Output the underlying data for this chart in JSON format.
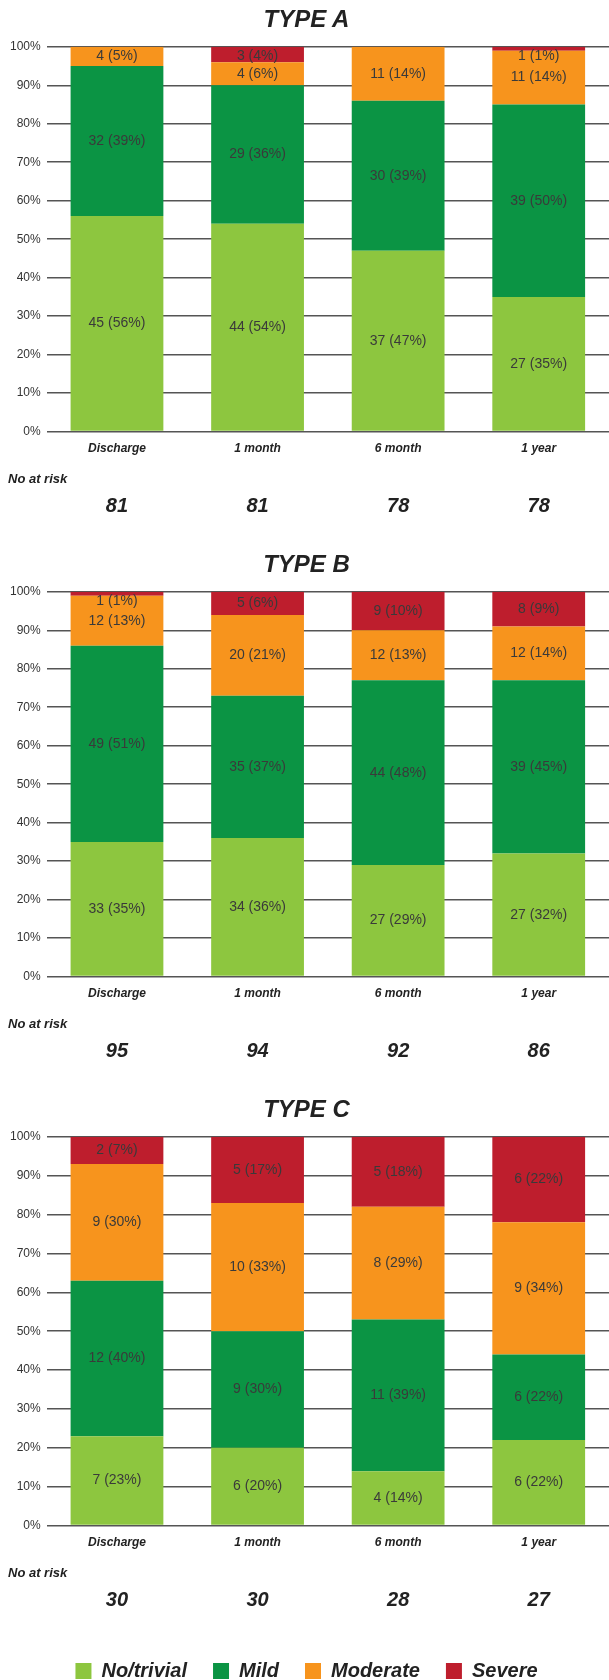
{
  "chart_data": [
    {
      "type": "bar",
      "title": "TYPE A",
      "stacked": true,
      "grid": "y",
      "legend": false,
      "categories": [
        "Discharge",
        "1 month",
        "6 month",
        "1 year"
      ],
      "ylim": [
        0,
        100
      ],
      "yticks": [
        {
          "value": 0,
          "label": "0%"
        },
        {
          "value": 10,
          "label": "10%"
        },
        {
          "value": 20,
          "label": "20%"
        },
        {
          "value": 30,
          "label": "30%"
        },
        {
          "value": 40,
          "label": "40%"
        },
        {
          "value": 50,
          "label": "50%"
        },
        {
          "value": 60,
          "label": "60%"
        },
        {
          "value": 70,
          "label": "70%"
        },
        {
          "value": 80,
          "label": "80%"
        },
        {
          "value": 90,
          "label": "90%"
        },
        {
          "value": 100,
          "label": "100%"
        }
      ],
      "series": [
        {
          "color": "#8dc63f",
          "values": [
            56,
            54,
            47,
            35
          ],
          "value_labels": [
            "45 (56%)",
            "44 (54%)",
            "37 (47%)",
            "27 (35%)"
          ]
        },
        {
          "color": "#0b9444",
          "values": [
            39,
            36,
            39,
            50
          ],
          "value_labels": [
            "32 (39%)",
            "29 (36%)",
            "30 (39%)",
            "39 (50%)"
          ]
        },
        {
          "color": "#f7941d",
          "values": [
            5,
            6,
            14,
            14
          ],
          "value_labels": [
            "4 (5%)",
            "4 (6%)",
            "11 (14%)",
            "11 (14%)"
          ]
        },
        {
          "color": "#be1e2d",
          "values": [
            null,
            4,
            null,
            1
          ],
          "value_labels": [
            null,
            "3 (4%)",
            null,
            "1 (1%)"
          ]
        }
      ],
      "annotations": [
        "No at risk",
        "81",
        "81",
        "78",
        "78"
      ]
    },
    {
      "type": "bar",
      "title": "TYPE B",
      "stacked": true,
      "grid": "y",
      "legend": false,
      "categories": [
        "Discharge",
        "1 month",
        "6 month",
        "1 year"
      ],
      "ylim": [
        0,
        100
      ],
      "yticks": [
        {
          "value": 0,
          "label": "0%"
        },
        {
          "value": 10,
          "label": "10%"
        },
        {
          "value": 20,
          "label": "20%"
        },
        {
          "value": 30,
          "label": "30%"
        },
        {
          "value": 40,
          "label": "40%"
        },
        {
          "value": 50,
          "label": "50%"
        },
        {
          "value": 60,
          "label": "60%"
        },
        {
          "value": 70,
          "label": "70%"
        },
        {
          "value": 80,
          "label": "80%"
        },
        {
          "value": 90,
          "label": "90%"
        },
        {
          "value": 100,
          "label": "100%"
        }
      ],
      "series": [
        {
          "color": "#8dc63f",
          "values": [
            35,
            36,
            29,
            32
          ],
          "value_labels": [
            "33 (35%)",
            "34 (36%)",
            "27 (29%)",
            "27 (32%)"
          ]
        },
        {
          "color": "#0b9444",
          "values": [
            51,
            37,
            48,
            45
          ],
          "value_labels": [
            "49 (51%)",
            "35 (37%)",
            "44 (48%)",
            "39 (45%)"
          ]
        },
        {
          "color": "#f7941d",
          "values": [
            13,
            21,
            13,
            14
          ],
          "value_labels": [
            "12 (13%)",
            "20 (21%)",
            "12 (13%)",
            "12 (14%)"
          ]
        },
        {
          "color": "#be1e2d",
          "values": [
            1,
            6,
            10,
            9
          ],
          "value_labels": [
            "1 (1%)",
            "5 (6%)",
            "9 (10%)",
            "8 (9%)"
          ]
        }
      ],
      "annotations": [
        "No at risk",
        "95",
        "94",
        "92",
        "86"
      ]
    },
    {
      "type": "bar",
      "title": "TYPE C",
      "stacked": true,
      "grid": "y",
      "legend": "bottom",
      "categories": [
        "Discharge",
        "1 month",
        "6 month",
        "1 year"
      ],
      "ylim": [
        0,
        100
      ],
      "yticks": [
        {
          "value": 0,
          "label": "0%"
        },
        {
          "value": 10,
          "label": "10%"
        },
        {
          "value": 20,
          "label": "20%"
        },
        {
          "value": 30,
          "label": "30%"
        },
        {
          "value": 40,
          "label": "40%"
        },
        {
          "value": 50,
          "label": "50%"
        },
        {
          "value": 60,
          "label": "60%"
        },
        {
          "value": 70,
          "label": "70%"
        },
        {
          "value": 80,
          "label": "80%"
        },
        {
          "value": 90,
          "label": "90%"
        },
        {
          "value": 100,
          "label": "100%"
        }
      ],
      "series": [
        {
          "name": "No/trivial",
          "color": "#8dc63f",
          "values": [
            23,
            20,
            14,
            22
          ],
          "value_labels": [
            "7 (23%)",
            "6 (20%)",
            "4 (14%)",
            "6 (22%)"
          ]
        },
        {
          "name": "Mild",
          "color": "#0b9444",
          "values": [
            40,
            30,
            39,
            22
          ],
          "value_labels": [
            "12 (40%)",
            "9 (30%)",
            "11 (39%)",
            "6 (22%)"
          ]
        },
        {
          "name": "Moderate",
          "color": "#f7941d",
          "values": [
            30,
            33,
            29,
            34
          ],
          "value_labels": [
            "9 (30%)",
            "10 (33%)",
            "8 (29%)",
            "9 (34%)"
          ]
        },
        {
          "name": "Severe",
          "color": "#be1e2d",
          "values": [
            7,
            17,
            18,
            22
          ],
          "value_labels": [
            "2 (7%)",
            "5 (17%)",
            "5 (18%)",
            "6 (22%)"
          ]
        }
      ],
      "annotations": [
        "No at risk",
        "30",
        "30",
        "28",
        "27"
      ]
    }
  ]
}
